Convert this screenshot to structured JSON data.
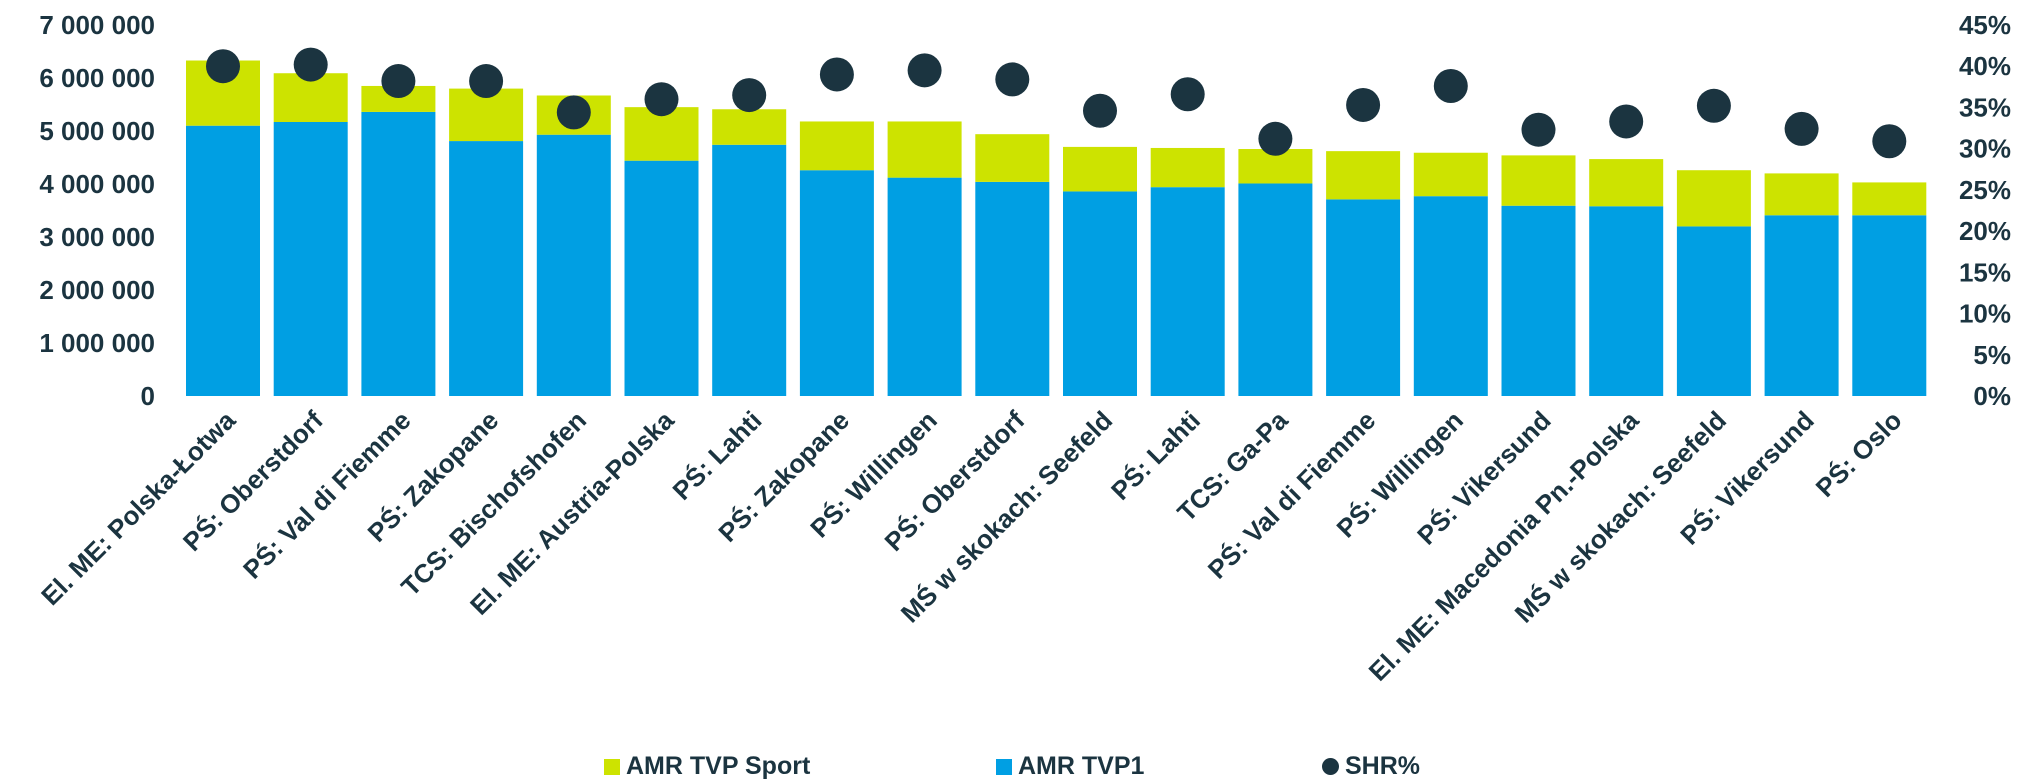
{
  "chart_data": {
    "type": "bar",
    "stacked": true,
    "categories": [
      "El. ME: Polska-Łotwa",
      "PŚ: Oberstdorf",
      "PŚ: Val di Fiemme",
      "PŚ: Zakopane",
      "TCS: Bischofshofen",
      "El. ME: Austria-Polska",
      "PŚ: Lahti",
      "PŚ: Zakopane",
      "PŚ: Willingen",
      "PŚ: Oberstdorf",
      "MŚ w skokach: Seefeld",
      "PŚ: Lahti",
      "TCS: Ga-Pa",
      "PŚ: Val di Fiemme",
      "PŚ: Willingen",
      "PŚ: Vikersund",
      "El. ME: Macedonia Pn.-Polska",
      "MŚ w skokach: Seefeld",
      "PŚ: Vikersund",
      "PŚ: Oslo"
    ],
    "series": [
      {
        "name": "AMR TVP1",
        "color": "#009fe3",
        "axis": "left",
        "values": [
          5100000,
          5170000,
          5360000,
          4810000,
          4930000,
          4440000,
          4740000,
          4260000,
          4120000,
          4040000,
          3860000,
          3940000,
          4010000,
          3710000,
          3770000,
          3590000,
          3580000,
          3200000,
          3410000,
          3410000
        ]
      },
      {
        "name": "AMR TVP Sport",
        "color": "#cde300",
        "axis": "left",
        "values": [
          1230000,
          920000,
          490000,
          990000,
          740000,
          1010000,
          670000,
          920000,
          1060000,
          900000,
          840000,
          740000,
          650000,
          910000,
          820000,
          950000,
          890000,
          1060000,
          790000,
          620000
        ]
      },
      {
        "name": "SHR%",
        "type": "scatter",
        "color": "#1b3440",
        "axis": "right",
        "values": [
          40.0,
          40.2,
          38.2,
          38.2,
          34.4,
          36.0,
          36.5,
          39.0,
          39.5,
          38.4,
          34.6,
          36.6,
          31.2,
          35.3,
          37.6,
          32.3,
          33.3,
          35.2,
          32.4,
          30.9
        ]
      }
    ],
    "y_left": {
      "lim": [
        0,
        7000000
      ],
      "ticks": [
        0,
        1000000,
        2000000,
        3000000,
        4000000,
        5000000,
        6000000,
        7000000
      ],
      "tick_labels": [
        "0",
        "1 000 000",
        "2 000 000",
        "3 000 000",
        "4 000 000",
        "5 000 000",
        "6 000 000",
        "7 000 000"
      ]
    },
    "y_right": {
      "lim": [
        0,
        45
      ],
      "ticks": [
        0,
        5,
        10,
        15,
        20,
        25,
        30,
        35,
        40,
        45
      ],
      "tick_labels": [
        "0%",
        "5%",
        "10%",
        "15%",
        "20%",
        "25%",
        "30%",
        "35%",
        "40%",
        "45%"
      ]
    },
    "grid": false,
    "legend_position": "bottom",
    "legend": [
      {
        "label": "AMR TVP Sport",
        "marker": "square",
        "color": "#cde300"
      },
      {
        "label": "AMR TVP1",
        "marker": "square",
        "color": "#009fe3"
      },
      {
        "label": "SHR%",
        "marker": "circle",
        "color": "#1b3440"
      }
    ]
  }
}
